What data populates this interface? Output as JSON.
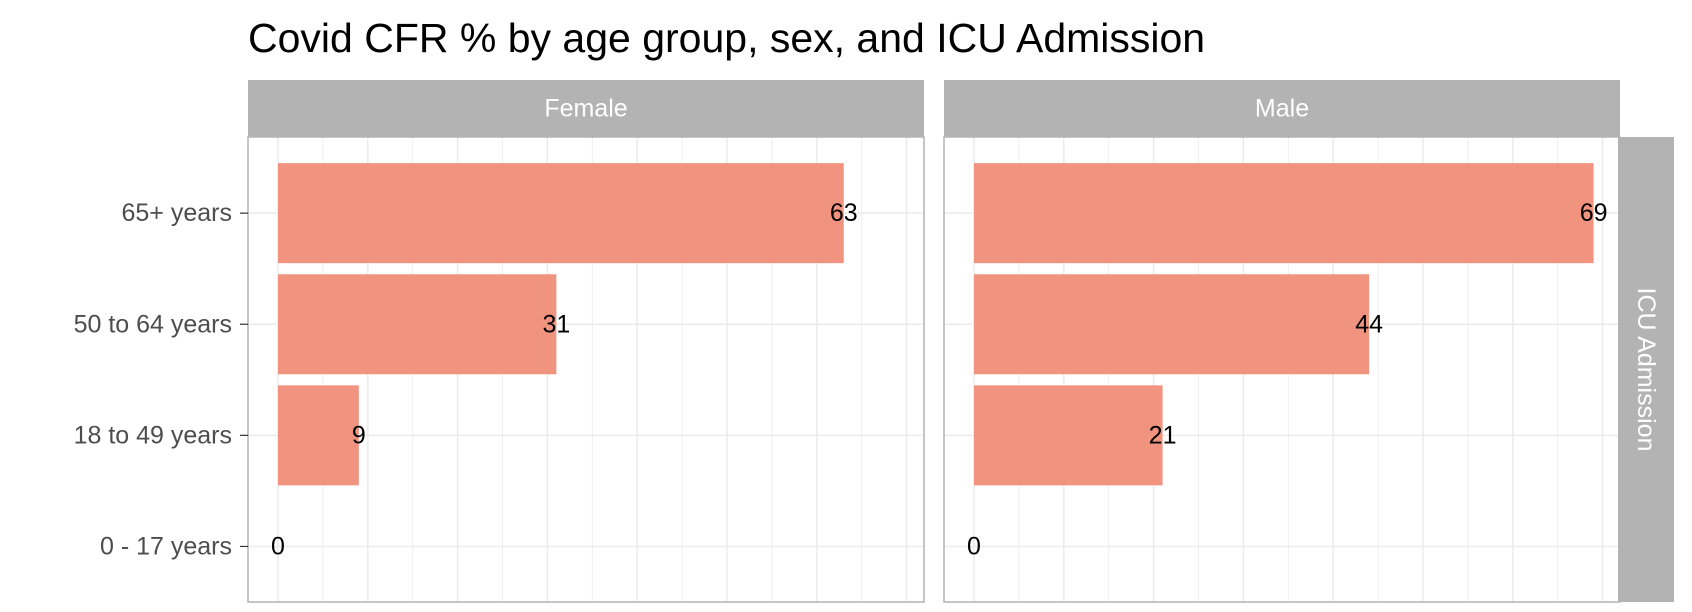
{
  "chart_data": {
    "type": "bar",
    "orientation": "horizontal",
    "title": "Covid CFR % by age group, sex, and ICU Admission",
    "categories": [
      "0 - 17 years",
      "18 to 49 years",
      "50 to 64 years",
      "65+ years"
    ],
    "facets": [
      {
        "name": "Female",
        "values": [
          0,
          9,
          31,
          63
        ]
      },
      {
        "name": "Male",
        "values": [
          0,
          21,
          44,
          69
        ]
      }
    ],
    "row_strip": "ICU Admission",
    "xlim": [
      0,
      70
    ],
    "bar_color": "#f0937f",
    "grid": true,
    "legend": "none"
  }
}
